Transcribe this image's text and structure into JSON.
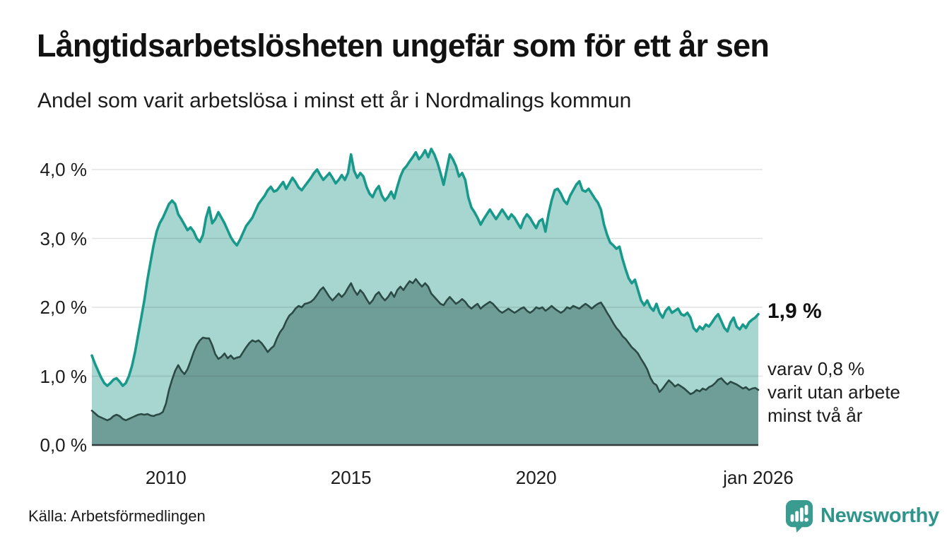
{
  "header": {
    "title": "Långtidsarbetslösheten ungefär som för ett år sen",
    "subtitle": "Andel som varit arbetslösa i minst ett år i Nordmalings kommun"
  },
  "annotations": {
    "end_value": "1,9 %",
    "sub_line1": "varav 0,8 %",
    "sub_line2": "varit utan arbete",
    "sub_line3": "minst två år"
  },
  "footer": {
    "source": "Källa: Arbetsförmedlingen",
    "brand": "Newsworthy",
    "brand_color": "#2e958b"
  },
  "chart_data": {
    "type": "area",
    "title": "Långtidsarbetslösheten ungefär som för ett år sen",
    "subtitle": "Andel som varit arbetslösa i minst ett år i Nordmalings kommun",
    "unit": "%",
    "x_start": "2008-01",
    "x_end": "2026-01",
    "x_step": "month",
    "ylim": [
      0,
      4.45
    ],
    "grid": "horizontal",
    "background": "#ffffff",
    "baseline_color": "#333d3b",
    "gridline_color": "rgba(40,60,55,0.14)",
    "x_ticks": [
      {
        "label": "2010",
        "month_index": 24
      },
      {
        "label": "2015",
        "month_index": 84
      },
      {
        "label": "2020",
        "month_index": 144
      },
      {
        "label": "jan 2026",
        "month_index": 216
      }
    ],
    "y_ticks": [
      {
        "label": "0,0 %",
        "value": 0
      },
      {
        "label": "1,0 %",
        "value": 1
      },
      {
        "label": "2,0 %",
        "value": 2
      },
      {
        "label": "3,0 %",
        "value": 3
      },
      {
        "label": "4,0 %",
        "value": 4
      }
    ],
    "series": [
      {
        "name": "arbetslösa minst ett år",
        "end_label": "1,9 %",
        "line_color": "#18998b",
        "fill_color": "#a6d6cf",
        "line_width": 3.6,
        "values": [
          1.3,
          1.18,
          1.08,
          0.98,
          0.9,
          0.86,
          0.9,
          0.95,
          0.97,
          0.92,
          0.86,
          0.9,
          1.0,
          1.15,
          1.35,
          1.6,
          1.85,
          2.1,
          2.4,
          2.65,
          2.9,
          3.1,
          3.22,
          3.3,
          3.4,
          3.5,
          3.55,
          3.5,
          3.35,
          3.28,
          3.2,
          3.12,
          3.16,
          3.1,
          3.0,
          2.95,
          3.05,
          3.3,
          3.45,
          3.22,
          3.28,
          3.38,
          3.3,
          3.22,
          3.12,
          3.02,
          2.95,
          2.9,
          2.98,
          3.08,
          3.18,
          3.24,
          3.3,
          3.4,
          3.5,
          3.56,
          3.62,
          3.7,
          3.75,
          3.68,
          3.7,
          3.76,
          3.82,
          3.72,
          3.8,
          3.88,
          3.82,
          3.74,
          3.7,
          3.76,
          3.82,
          3.88,
          3.95,
          4.0,
          3.92,
          3.85,
          3.9,
          3.95,
          3.88,
          3.8,
          3.85,
          3.92,
          3.85,
          3.95,
          4.22,
          3.98,
          3.88,
          3.95,
          3.9,
          3.75,
          3.65,
          3.6,
          3.7,
          3.76,
          3.62,
          3.55,
          3.6,
          3.68,
          3.58,
          3.75,
          3.9,
          4.0,
          4.05,
          4.12,
          4.18,
          4.25,
          4.15,
          4.2,
          4.28,
          4.18,
          4.3,
          4.22,
          4.1,
          3.95,
          3.78,
          4.0,
          4.22,
          4.15,
          4.05,
          3.9,
          3.95,
          3.85,
          3.6,
          3.45,
          3.38,
          3.3,
          3.2,
          3.28,
          3.35,
          3.42,
          3.35,
          3.28,
          3.35,
          3.42,
          3.35,
          3.28,
          3.35,
          3.3,
          3.22,
          3.15,
          3.28,
          3.35,
          3.3,
          3.22,
          3.15,
          3.25,
          3.28,
          3.1,
          3.35,
          3.55,
          3.7,
          3.72,
          3.65,
          3.55,
          3.5,
          3.62,
          3.7,
          3.78,
          3.83,
          3.7,
          3.68,
          3.72,
          3.65,
          3.58,
          3.52,
          3.42,
          3.2,
          3.05,
          2.94,
          2.9,
          2.85,
          2.88,
          2.7,
          2.55,
          2.42,
          2.35,
          2.4,
          2.25,
          2.1,
          2.03,
          2.1,
          2.0,
          1.95,
          2.05,
          1.92,
          1.85,
          1.95,
          2.0,
          1.92,
          1.95,
          1.98,
          1.9,
          1.88,
          1.92,
          1.85,
          1.7,
          1.65,
          1.72,
          1.68,
          1.75,
          1.72,
          1.78,
          1.85,
          1.9,
          1.8,
          1.7,
          1.65,
          1.78,
          1.85,
          1.72,
          1.68,
          1.75,
          1.7,
          1.78,
          1.82,
          1.85,
          1.9
        ]
      },
      {
        "name": "arbetslösa minst två år",
        "end_label": "varav 0,8 % varit utan arbete minst två år",
        "line_color": "#2c4a45",
        "fill_color": "#6f9d97",
        "line_width": 2.6,
        "values": [
          0.5,
          0.46,
          0.42,
          0.4,
          0.38,
          0.36,
          0.38,
          0.42,
          0.44,
          0.42,
          0.38,
          0.36,
          0.38,
          0.4,
          0.42,
          0.44,
          0.45,
          0.44,
          0.45,
          0.43,
          0.42,
          0.44,
          0.45,
          0.48,
          0.6,
          0.8,
          0.95,
          1.08,
          1.16,
          1.08,
          1.03,
          1.1,
          1.22,
          1.35,
          1.45,
          1.52,
          1.56,
          1.55,
          1.55,
          1.45,
          1.32,
          1.25,
          1.28,
          1.33,
          1.26,
          1.3,
          1.25,
          1.27,
          1.28,
          1.35,
          1.42,
          1.48,
          1.52,
          1.5,
          1.52,
          1.48,
          1.42,
          1.35,
          1.4,
          1.44,
          1.55,
          1.64,
          1.7,
          1.8,
          1.88,
          1.92,
          1.98,
          2.02,
          2.0,
          2.05,
          2.06,
          2.08,
          2.12,
          2.18,
          2.25,
          2.29,
          2.22,
          2.15,
          2.1,
          2.15,
          2.2,
          2.15,
          2.2,
          2.28,
          2.35,
          2.25,
          2.18,
          2.25,
          2.2,
          2.12,
          2.05,
          2.1,
          2.18,
          2.22,
          2.15,
          2.1,
          2.15,
          2.22,
          2.15,
          2.25,
          2.3,
          2.25,
          2.32,
          2.38,
          2.35,
          2.41,
          2.35,
          2.3,
          2.35,
          2.3,
          2.2,
          2.15,
          2.1,
          2.05,
          2.03,
          2.1,
          2.15,
          2.1,
          2.05,
          2.08,
          2.12,
          2.08,
          2.02,
          1.98,
          2.02,
          2.05,
          1.98,
          2.02,
          2.05,
          2.08,
          2.05,
          2.0,
          1.95,
          1.92,
          1.95,
          1.98,
          1.95,
          1.92,
          1.95,
          1.98,
          2.0,
          1.95,
          1.92,
          1.95,
          2.0,
          1.98,
          2.0,
          1.95,
          1.98,
          2.02,
          1.98,
          1.95,
          1.92,
          1.95,
          2.0,
          1.98,
          2.02,
          2.0,
          1.98,
          2.02,
          2.05,
          2.02,
          1.98,
          2.02,
          2.05,
          2.07,
          2.0,
          1.92,
          1.85,
          1.77,
          1.7,
          1.65,
          1.58,
          1.54,
          1.48,
          1.42,
          1.38,
          1.33,
          1.25,
          1.18,
          1.1,
          0.98,
          0.9,
          0.87,
          0.77,
          0.82,
          0.88,
          0.94,
          0.9,
          0.85,
          0.88,
          0.85,
          0.82,
          0.78,
          0.74,
          0.76,
          0.8,
          0.78,
          0.82,
          0.8,
          0.84,
          0.86,
          0.9,
          0.95,
          0.97,
          0.92,
          0.88,
          0.92,
          0.9,
          0.88,
          0.85,
          0.82,
          0.84,
          0.8,
          0.82,
          0.83,
          0.8
        ]
      }
    ]
  }
}
